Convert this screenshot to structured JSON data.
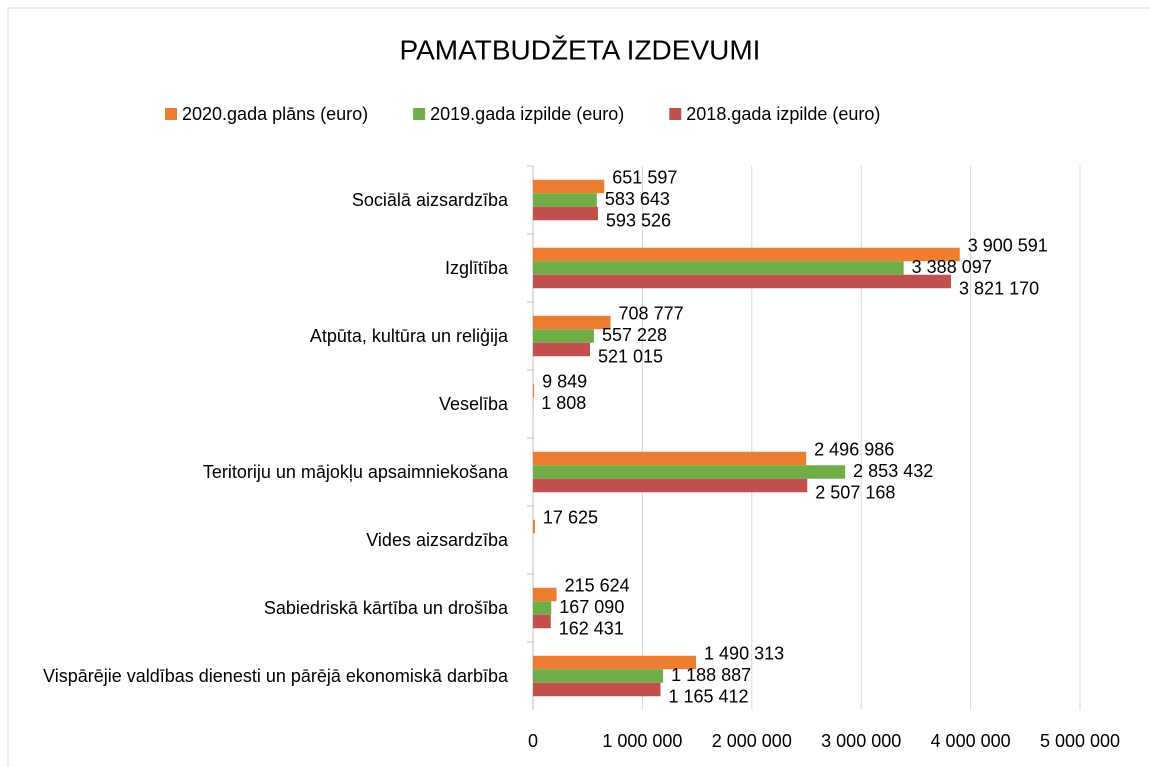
{
  "chart_data": {
    "type": "bar",
    "orientation": "horizontal",
    "title": "PAMATBUDŽETA IZDEVUMI",
    "categories": [
      "Sociālā aizsardzība",
      "Izglītība",
      "Atpūta, kultūra un reliģija",
      "Veselība",
      "Teritoriju un mājokļu apsaimniekošana",
      "Vides aizsardzība",
      "Sabiedriskā kārtība un drošība",
      "Vispārējie valdības dienesti un pārējā ekonomiskā darbība"
    ],
    "series": [
      {
        "name": "2020.gada plāns (euro)",
        "color": "#ed7d31",
        "values": [
          651597,
          3900591,
          708777,
          9849,
          2496986,
          17625,
          215624,
          1490313
        ],
        "value_labels": [
          "651 597",
          "3 900 591",
          "708 777",
          "9 849",
          "2 496 986",
          "17 625",
          "215 624",
          "1 490 313"
        ]
      },
      {
        "name": "2019.gada izpilde (euro)",
        "color": "#70ad47",
        "values": [
          583643,
          3388097,
          557228,
          1808,
          2853432,
          null,
          167090,
          1188887
        ],
        "value_labels": [
          "583 643",
          "3 388 097",
          "557 228",
          "1 808",
          "2 853 432",
          null,
          "167 090",
          "1 188 887"
        ]
      },
      {
        "name": "2018.gada izpilde (euro)",
        "color": "#c0504d",
        "values": [
          593526,
          3821170,
          521015,
          null,
          2507168,
          null,
          162431,
          1165412
        ],
        "value_labels": [
          "593 526",
          "3 821 170",
          "521 015",
          null,
          "2 507 168",
          null,
          "162 431",
          "1 165 412"
        ]
      }
    ],
    "xlim": [
      0,
      5000000
    ],
    "xticks": [
      0,
      {
        "value": 1000000,
        "label": "1 000 000"
      },
      {
        "value": 2000000,
        "label": "2 000 000"
      },
      {
        "value": 3000000,
        "label": "3 000 000"
      },
      {
        "value": 4000000,
        "label": "4 000 000"
      },
      {
        "value": 5000000,
        "label": "5 000 000"
      }
    ],
    "grid": true,
    "legend": "top"
  }
}
